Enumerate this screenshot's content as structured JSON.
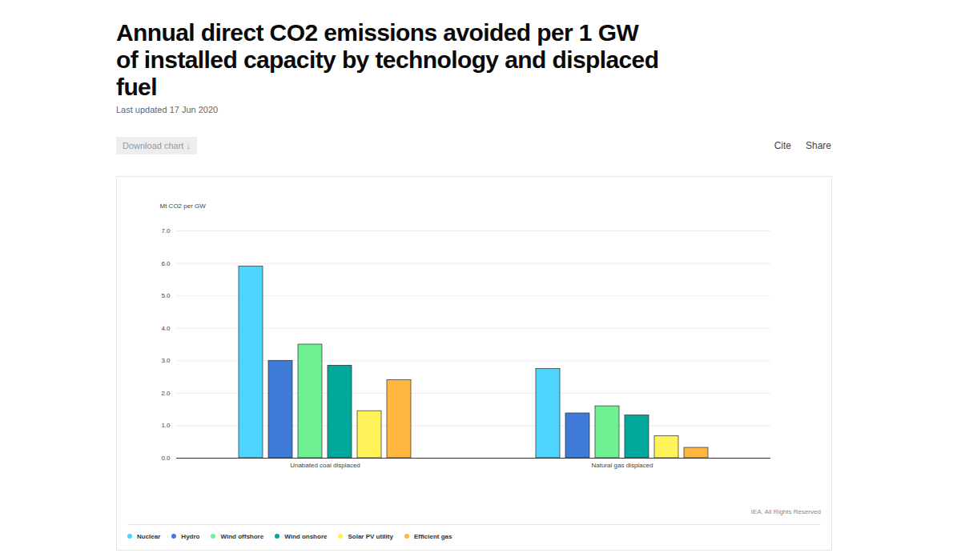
{
  "chart_data": {
    "type": "bar",
    "title": "Annual direct CO2 emissions avoided per 1 GW of installed capacity by technology and displaced fuel",
    "subtitle": "Last updated 17 Jun 2020",
    "buttons": [
      "Download chart ↓",
      "Cite",
      "Share"
    ],
    "source": "IEA. All Rights Reserved",
    "ylabel": "Mt CO2 per GW",
    "categories": [
      "Unabated coal displaced",
      "Natural gas displaced"
    ],
    "series": [
      {
        "name": "Nuclear",
        "color": "#4dd4ff",
        "values": [
          5.9,
          2.75
        ]
      },
      {
        "name": "Hydro",
        "color": "#3d7bd6",
        "values": [
          3.0,
          1.38
        ]
      },
      {
        "name": "Wind offshore",
        "color": "#6ef093",
        "values": [
          3.5,
          1.6
        ]
      },
      {
        "name": "Wind onshore",
        "color": "#00a99c",
        "values": [
          2.85,
          1.32
        ]
      },
      {
        "name": "Solar PV utility",
        "color": "#fff25a",
        "values": [
          1.45,
          0.68
        ]
      },
      {
        "name": "Efficient gas",
        "color": "#ffb73f",
        "values": [
          2.4,
          0.32
        ]
      }
    ],
    "ylim": [
      0,
      7
    ],
    "yticks": [
      0,
      1,
      2,
      3,
      4,
      5,
      6,
      7
    ],
    "grid": true,
    "legend": "bottom"
  }
}
